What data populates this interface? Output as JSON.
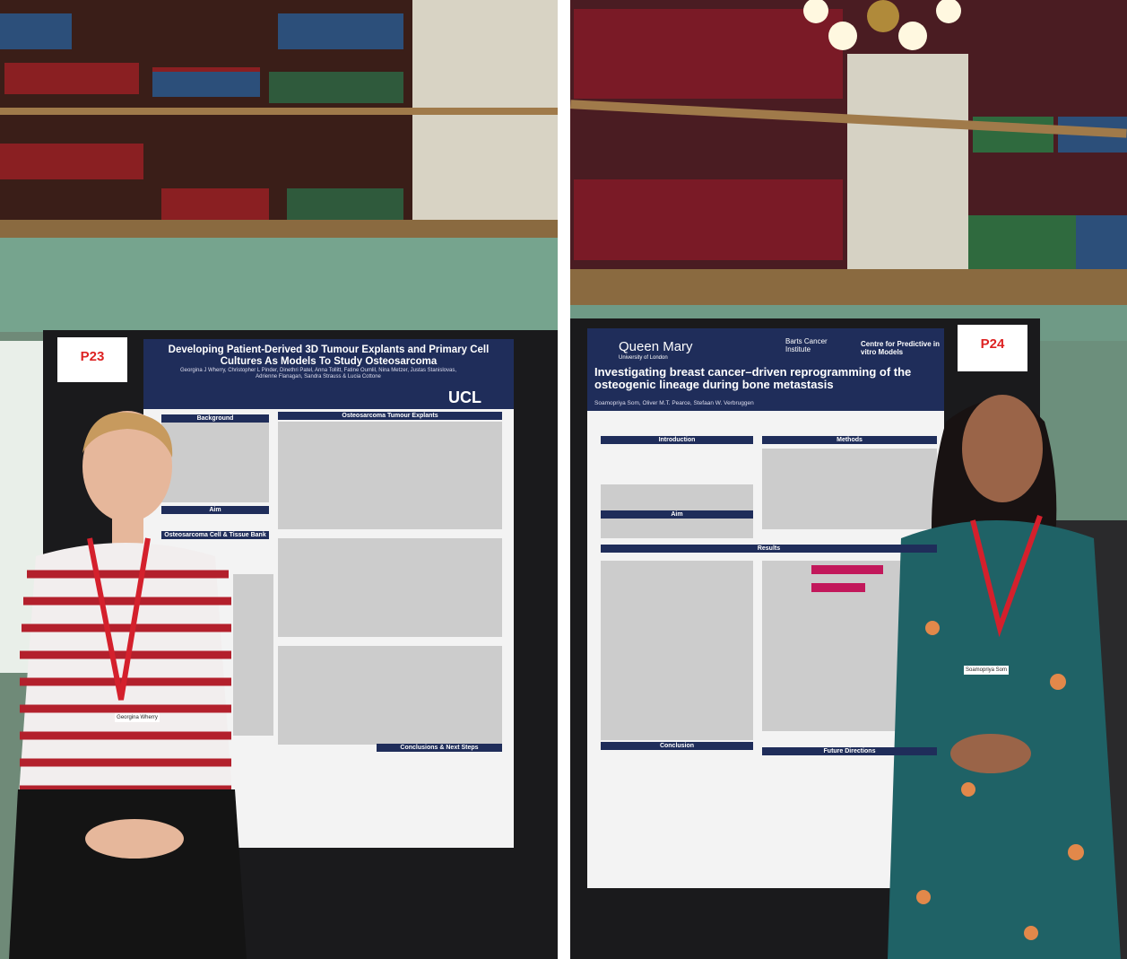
{
  "left_photo": {
    "board_label": "P23",
    "poster": {
      "title": "Developing Patient-Derived 3D Tumour Explants and Primary Cell Cultures As Models To Study Osteosarcoma",
      "authors": "Georgina J Wherry, Christopher L Pinder, Dinethri Patel, Anna Tollitt, Fatine Oumlil, Nina Metzer, Justas Stanislovas, Adrienne Flanagan, Sandra Strauss & Lucia Cottone",
      "logo": "UCL",
      "sections": [
        "Background",
        "Osteosarcoma Tumour Explants",
        "Aim",
        "Osteosarcoma Cell & Tissue Bank",
        "Conclusions & Next Steps"
      ]
    },
    "badge": "Georgina Wherry"
  },
  "right_photo": {
    "board_label": "P24",
    "poster": {
      "logos": [
        "Queen Mary",
        "University of London",
        "Barts Cancer Institute",
        "Centre for Predictive in vitro Models"
      ],
      "title": "Investigating breast cancer–driven reprogramming of the osteogenic lineage during bone metastasis",
      "authors": "Soamopriya Som, Oliver M.T. Pearce, Stefaan W. Verbruggen",
      "sections": [
        "Introduction",
        "Methods",
        "Aim",
        "Results",
        "Conclusion",
        "Future Directions"
      ]
    },
    "badge": "Soamopriya Som"
  }
}
